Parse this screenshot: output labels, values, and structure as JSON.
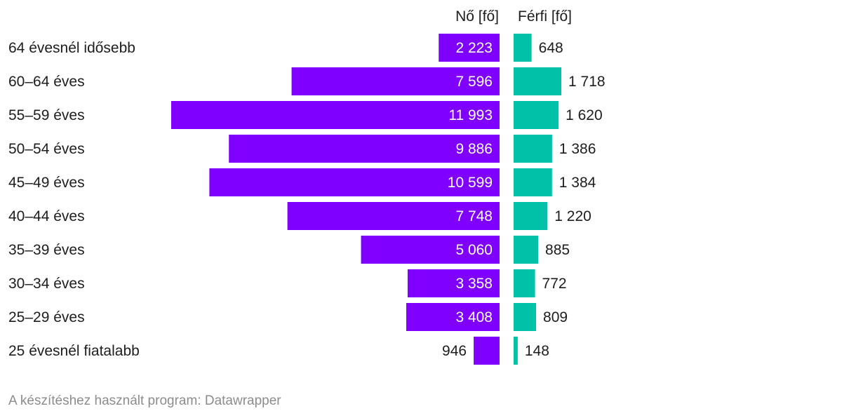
{
  "chart_data": {
    "type": "bar",
    "orientation": "horizontal-butterfly",
    "categories": [
      "64 évesnél idősebb",
      "60–64 éves",
      "55–59 éves",
      "50–54 éves",
      "45–49 éves",
      "40–44 éves",
      "35–39 éves",
      "30–34 éves",
      "25–29 éves",
      "25 évesnél fiatalabb"
    ],
    "series": [
      {
        "name": "Nő [fő]",
        "color": "#8000ff",
        "values": [
          2223,
          7596,
          11993,
          9886,
          10599,
          7748,
          5060,
          3358,
          3408,
          946
        ],
        "labels": [
          "2 223",
          "7 596",
          "11 993",
          "9 886",
          "10 599",
          "7 748",
          "5 060",
          "3 358",
          "3 408",
          "946"
        ]
      },
      {
        "name": "Férfi [fő]",
        "color": "#00c2a8",
        "values": [
          648,
          1718,
          1620,
          1386,
          1384,
          1220,
          885,
          772,
          809,
          148
        ],
        "labels": [
          "648",
          "1 718",
          "1 620",
          "1 386",
          "1 384",
          "1 220",
          "885",
          "772",
          "809",
          "148"
        ]
      }
    ],
    "grid": false,
    "legend": "column-headers-top"
  },
  "footer": {
    "credit": "A készítéshez használt program: Datawrapper"
  }
}
